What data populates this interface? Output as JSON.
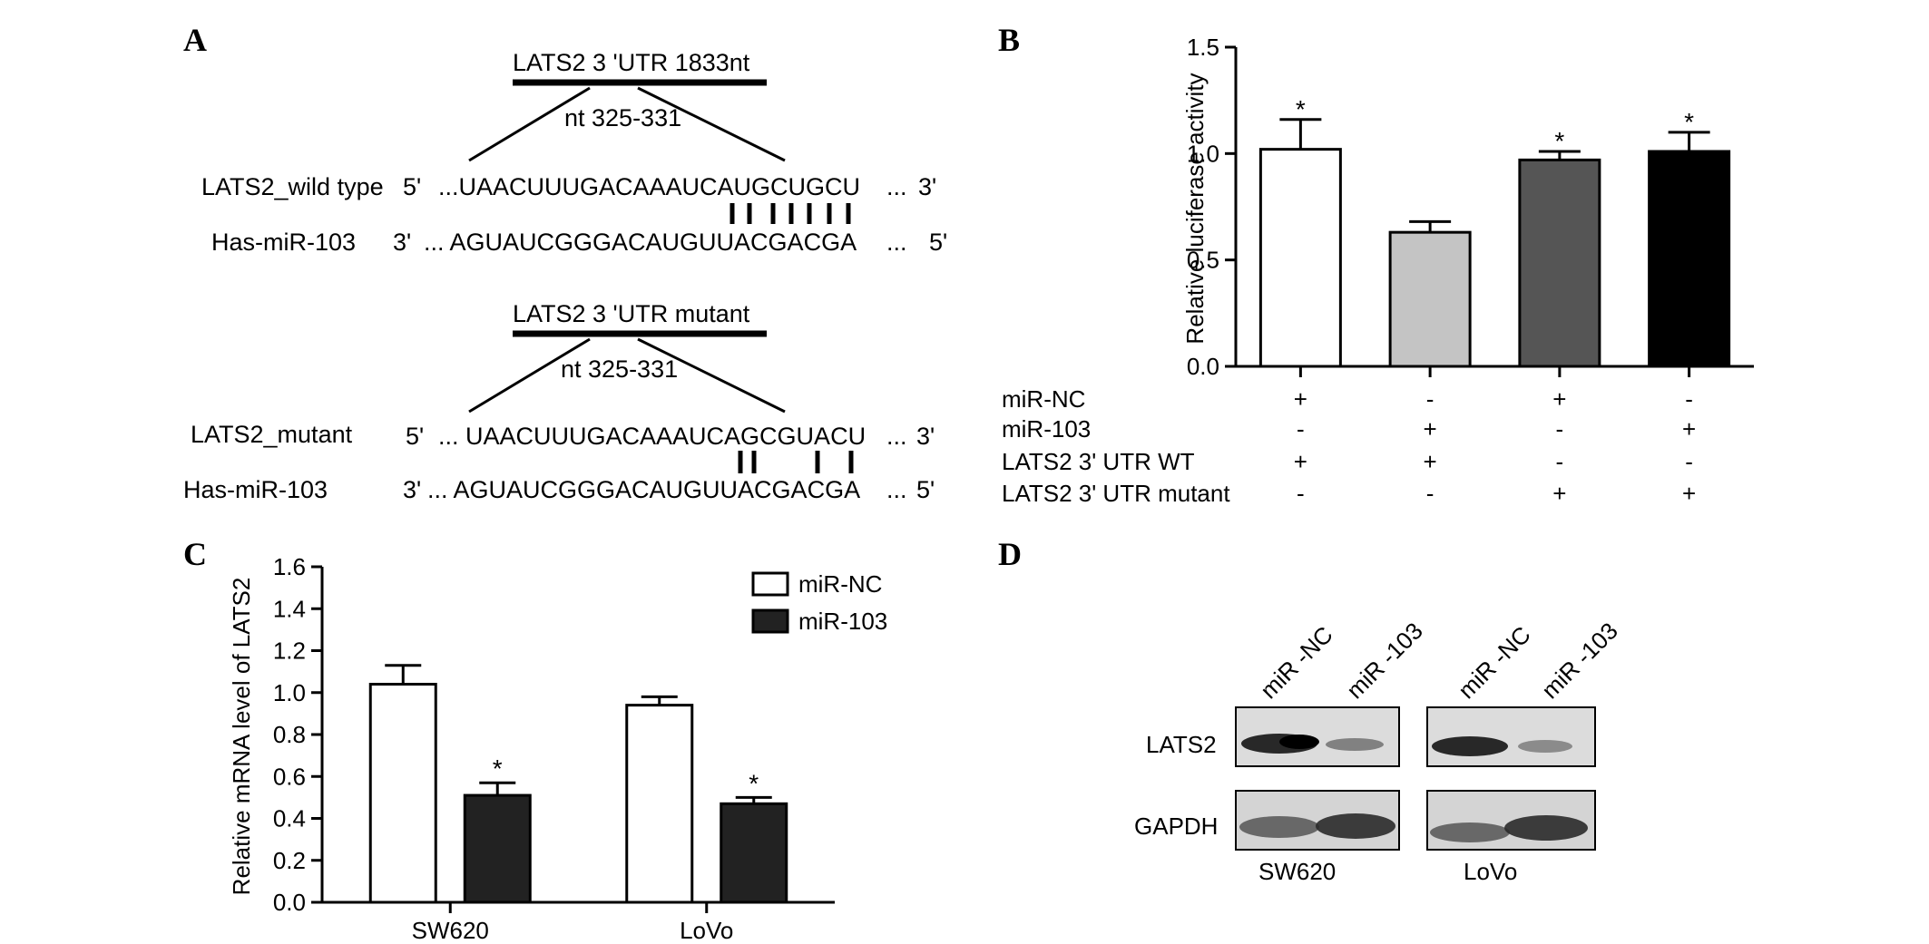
{
  "panels": {
    "a": "A",
    "b": "B",
    "c": "C",
    "d": "D"
  },
  "panel_a": {
    "wt_header": "LATS2  3 'UTR 1833nt",
    "wt_region": "nt 325-331",
    "wt_label": "LATS2_wild type",
    "wt_5": "5'",
    "wt_seq": "...UAACUUUGACAAAUCAUGCUGCU",
    "wt_dots": "...",
    "wt_3": "3'",
    "mir1_label": "Has-miR-103",
    "mir1_3": "3'",
    "mir1_seq": "... AGUAUCGGGACAUGUUACGACGA",
    "mir1_dots": "...",
    "mir1_5": "5'",
    "mut_header": "LATS2  3 'UTR mutant",
    "mut_region": "nt 325-331",
    "mut_label": "LATS2_mutant",
    "mut_5": "5'",
    "mut_seq": "... UAACUUUGACAAAUCAGCGUACU",
    "mut_dots": "...",
    "mut_3": "3'",
    "mir2_label": "Has-miR-103",
    "mir2_3": "3'",
    "mir2_seq": "... AGUAUCGGGACAUGUUACGACGA",
    "mir2_dots": "...",
    "mir2_5": "5'"
  },
  "panel_d": {
    "lanes": [
      "miR -NC",
      "miR -103",
      "miR -NC",
      "miR -103"
    ],
    "rows": [
      "LATS2",
      "GAPDH"
    ],
    "cell_lines": [
      "SW620",
      "LoVo"
    ]
  },
  "chart_data": [
    {
      "type": "bar",
      "ylabel": "Relative luciferase activity",
      "ylim": [
        0,
        1.5
      ],
      "yticks": [
        "0.0",
        "0.5",
        "1.0",
        "1.5"
      ],
      "values": [
        1.02,
        0.63,
        0.97,
        1.01
      ],
      "errors": [
        0.14,
        0.05,
        0.04,
        0.09
      ],
      "colors": [
        "#ffffff",
        "#c4c4c4",
        "#555555",
        "#000000"
      ],
      "significance": [
        "*",
        "",
        "*",
        "*"
      ],
      "condition_table": [
        {
          "label": "miR-NC",
          "signs": [
            "+",
            "-",
            "+",
            "-"
          ]
        },
        {
          "label": "miR-103",
          "signs": [
            "-",
            "+",
            "-",
            "+"
          ]
        },
        {
          "label": "LATS2 3' UTR WT",
          "signs": [
            "+",
            "+",
            "-",
            "-"
          ]
        },
        {
          "label": "LATS2 3' UTR mutant",
          "signs": [
            "-",
            "-",
            "+",
            "+"
          ]
        }
      ]
    },
    {
      "type": "bar",
      "ylabel": "Relative mRNA level of LATS2",
      "ylim": [
        0,
        1.6
      ],
      "yticks": [
        "0.0",
        "0.2",
        "0.4",
        "0.6",
        "0.8",
        "1.0",
        "1.2",
        "1.4",
        "1.6"
      ],
      "categories": [
        "SW620",
        "LoVo"
      ],
      "series": [
        {
          "name": "miR-NC",
          "color": "#ffffff",
          "values": [
            1.04,
            0.94
          ],
          "errors": [
            0.09,
            0.04
          ],
          "significance": [
            "",
            ""
          ]
        },
        {
          "name": "miR-103",
          "color": "#222222",
          "values": [
            0.51,
            0.47
          ],
          "errors": [
            0.06,
            0.03
          ],
          "significance": [
            "*",
            "*"
          ]
        }
      ],
      "legend_position": "top-right"
    }
  ]
}
